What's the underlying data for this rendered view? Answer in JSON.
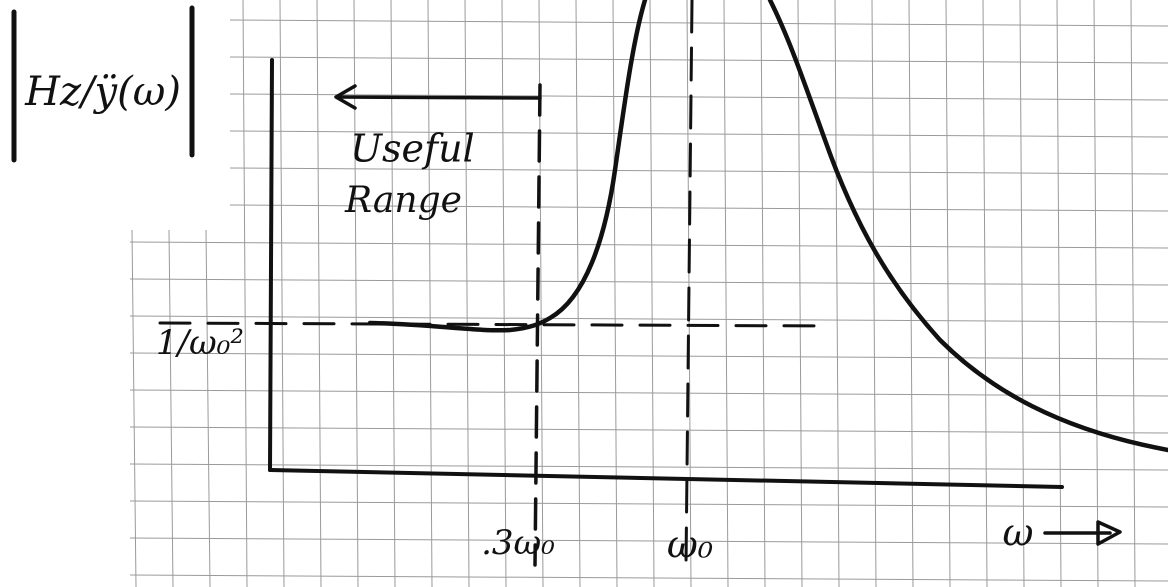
{
  "y_axis_label": "Hz/ÿ(ω)",
  "annotation": {
    "line1": "Useful",
    "line2": "Range"
  },
  "y_marker": "1/ω₀²",
  "x_markers": [
    ".3ω₀",
    "ω₀"
  ],
  "x_axis_label": "ω"
}
